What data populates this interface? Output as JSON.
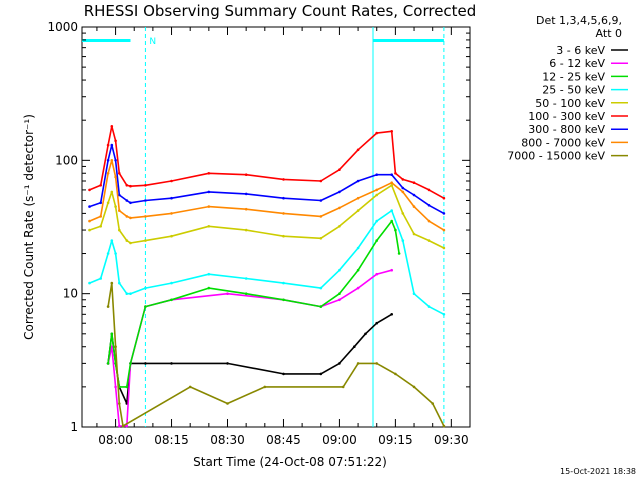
{
  "chart_data": {
    "type": "line",
    "title": "RHESSI Observing Summary Count Rates, Corrected",
    "xlabel": "Start Time (24-Oct-08 07:51:22)",
    "ylabel": "Corrected Count Rate (s⁻¹ detector⁻¹)",
    "ylog": true,
    "ylim": [
      1,
      1000
    ],
    "xlim_minutes": [
      7.851,
      9.581
    ],
    "xlim_clock": [
      "07:51",
      "09:35"
    ],
    "x_ticks": [
      "08:00",
      "08:15",
      "08:30",
      "08:45",
      "09:00",
      "09:15",
      "09:30"
    ],
    "y_ticks": [
      "1",
      "10",
      "100",
      "1000"
    ],
    "legend_header": [
      "Det 1,3,4,5,6,9,",
      "Att 0"
    ],
    "legend_position": "right-outside",
    "night_flag": "N",
    "timestamp": "15-Oct-2021 18:38",
    "annotations": {
      "flag_bars": [
        {
          "from": "07:51",
          "to": "08:04",
          "color": "#00ffff"
        },
        {
          "from": "09:09",
          "to": "09:28",
          "color": "#00ffff"
        }
      ],
      "vlines_dashed": [
        "08:08",
        "09:28"
      ],
      "vlines_solid": [
        "09:09"
      ]
    },
    "series": [
      {
        "name": "3 - 6 keV",
        "color": "#000000",
        "x": [
          "07:58",
          "07:59",
          "08:00",
          "08:01",
          "08:03",
          "08:04",
          "08:08",
          "08:15",
          "08:30",
          "08:45",
          "08:55",
          "09:00",
          "09:04",
          "09:07",
          "09:10",
          "09:14"
        ],
        "y": [
          3,
          5,
          3,
          2,
          1.5,
          3,
          3,
          3,
          3,
          2.5,
          2.5,
          3,
          4,
          5,
          6,
          7
        ]
      },
      {
        "name": "6 - 12 keV",
        "color": "#ff00ff",
        "x": [
          "07:58",
          "07:59",
          "08:00",
          "08:01",
          "08:03",
          "08:04",
          "08:08",
          "08:15",
          "08:30",
          "08:45",
          "08:55",
          "09:00",
          "09:05",
          "09:10",
          "09:14"
        ],
        "y": [
          3,
          4,
          2,
          1,
          1,
          3,
          8,
          9,
          10,
          9,
          8,
          9,
          11,
          14,
          15
        ]
      },
      {
        "name": "12 - 25 keV",
        "color": "#00dd00",
        "x": [
          "07:58",
          "07:59",
          "08:00",
          "08:01",
          "08:03",
          "08:04",
          "08:08",
          "08:15",
          "08:25",
          "08:35",
          "08:45",
          "08:55",
          "09:00",
          "09:05",
          "09:10",
          "09:14",
          "09:15",
          "09:16"
        ],
        "y": [
          3,
          5,
          3,
          2,
          2,
          3,
          8,
          9,
          11,
          10,
          9,
          8,
          10,
          15,
          25,
          35,
          30,
          20
        ]
      },
      {
        "name": "25 - 50 keV",
        "color": "#00ffff",
        "x": [
          "07:53",
          "07:56",
          "07:58",
          "07:59",
          "08:00",
          "08:01",
          "08:03",
          "08:04",
          "08:08",
          "08:15",
          "08:25",
          "08:35",
          "08:45",
          "08:55",
          "09:00",
          "09:05",
          "09:10",
          "09:14",
          "09:17",
          "09:20",
          "09:24",
          "09:28"
        ],
        "y": [
          12,
          13,
          20,
          25,
          20,
          12,
          10,
          10,
          11,
          12,
          14,
          13,
          12,
          11,
          15,
          22,
          35,
          42,
          25,
          10,
          8,
          7
        ]
      },
      {
        "name": "50 - 100 keV",
        "color": "#cccc00",
        "x": [
          "07:53",
          "07:56",
          "07:58",
          "07:59",
          "08:00",
          "08:01",
          "08:03",
          "08:04",
          "08:08",
          "08:15",
          "08:25",
          "08:35",
          "08:45",
          "08:55",
          "09:00",
          "09:05",
          "09:10",
          "09:14",
          "09:17",
          "09:20",
          "09:24",
          "09:28"
        ],
        "y": [
          30,
          32,
          48,
          58,
          45,
          30,
          25,
          24,
          25,
          27,
          32,
          30,
          27,
          26,
          32,
          42,
          55,
          65,
          40,
          28,
          25,
          22
        ]
      },
      {
        "name": "100 - 300 keV",
        "color": "#ff0000",
        "x": [
          "07:53",
          "07:56",
          "07:58",
          "07:59",
          "08:00",
          "08:01",
          "08:03",
          "08:04",
          "08:08",
          "08:15",
          "08:25",
          "08:35",
          "08:45",
          "08:55",
          "09:00",
          "09:05",
          "09:10",
          "09:14",
          "09:15",
          "09:17",
          "09:20",
          "09:24",
          "09:28"
        ],
        "y": [
          60,
          65,
          130,
          180,
          140,
          80,
          65,
          64,
          65,
          70,
          80,
          78,
          72,
          70,
          85,
          120,
          160,
          165,
          80,
          72,
          68,
          60,
          52
        ]
      },
      {
        "name": "300 - 800 keV",
        "color": "#0000ff",
        "x": [
          "07:53",
          "07:56",
          "07:58",
          "07:59",
          "08:00",
          "08:01",
          "08:03",
          "08:04",
          "08:08",
          "08:15",
          "08:25",
          "08:35",
          "08:45",
          "08:55",
          "09:00",
          "09:05",
          "09:10",
          "09:14",
          "09:17",
          "09:20",
          "09:24",
          "09:28"
        ],
        "y": [
          45,
          48,
          100,
          130,
          100,
          55,
          50,
          48,
          50,
          52,
          58,
          56,
          52,
          50,
          58,
          70,
          78,
          78,
          62,
          55,
          46,
          40
        ]
      },
      {
        "name": "800 - 7000 keV",
        "color": "#ff8800",
        "x": [
          "07:53",
          "07:56",
          "07:58",
          "07:59",
          "08:00",
          "08:01",
          "08:03",
          "08:04",
          "08:08",
          "08:15",
          "08:25",
          "08:35",
          "08:45",
          "08:55",
          "09:00",
          "09:05",
          "09:10",
          "09:14",
          "09:17",
          "09:20",
          "09:24",
          "09:28"
        ],
        "y": [
          35,
          38,
          80,
          100,
          75,
          42,
          38,
          37,
          38,
          40,
          45,
          43,
          40,
          38,
          44,
          52,
          60,
          68,
          58,
          45,
          35,
          30
        ]
      },
      {
        "name": "7000 - 15000 keV",
        "color": "#888800",
        "x": [
          "07:58",
          "07:59",
          "08:00",
          "08:01",
          "08:02",
          "08:20",
          "08:30",
          "08:40",
          "09:01",
          "09:05",
          "09:10",
          "09:15",
          "09:20",
          "09:25",
          "09:28"
        ],
        "y": [
          8,
          12,
          4,
          1.5,
          1,
          2,
          1.5,
          2,
          2,
          3,
          3,
          2.5,
          2,
          1.5,
          1
        ]
      }
    ]
  }
}
